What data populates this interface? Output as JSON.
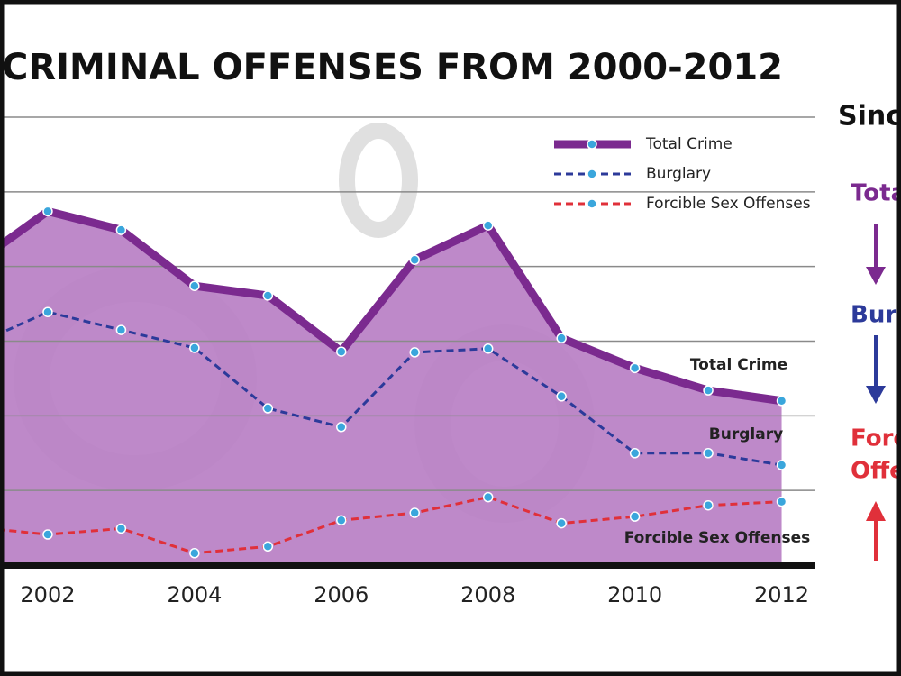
{
  "chart_data": {
    "type": "line",
    "title": "CRIMINAL OFFENSES FROM 2000-2012",
    "x": [
      2001,
      2002,
      2003,
      2004,
      2005,
      2006,
      2007,
      2008,
      2009,
      2010,
      2011,
      2012
    ],
    "xlim": [
      2001.35,
      2012.46
    ],
    "xticks": [
      2002,
      2004,
      2006,
      2008,
      2010,
      2012
    ],
    "ylim": [
      0,
      6
    ],
    "yticks": [
      0,
      1,
      2,
      3,
      4,
      5,
      6
    ],
    "grid": true,
    "legend": "top-right",
    "point_color": "#3aa6dc",
    "series": [
      {
        "name": "Total Crime",
        "color": "#7b2a8f",
        "fill": "#b87fc4",
        "area": true,
        "dashed": false,
        "values": [
          4.03,
          4.74,
          4.49,
          3.74,
          3.61,
          2.86,
          4.09,
          4.55,
          3.04,
          2.64,
          2.34,
          2.2
        ]
      },
      {
        "name": "Burglary",
        "color": "#2c3a9a",
        "area": false,
        "dashed": true,
        "values": [
          2.95,
          3.39,
          3.15,
          2.91,
          2.1,
          1.85,
          2.85,
          2.9,
          2.26,
          1.5,
          1.5,
          1.34
        ]
      },
      {
        "name": "Forcible Sex Offenses",
        "color": "#e0303a",
        "area": false,
        "dashed": true,
        "values": [
          0.51,
          0.41,
          0.49,
          0.16,
          0.25,
          0.6,
          0.7,
          0.91,
          0.56,
          0.65,
          0.8,
          0.85
        ]
      }
    ]
  },
  "side_panel": {
    "heading": "Since",
    "items": [
      {
        "text": "Tota",
        "color": "#7b2a8f"
      },
      {
        "text": "Burgl",
        "color": "#2c3a9a"
      },
      {
        "text": "Forc",
        "color": "#e0303a"
      },
      {
        "text": "Offe",
        "color": "#e0303a"
      }
    ]
  }
}
